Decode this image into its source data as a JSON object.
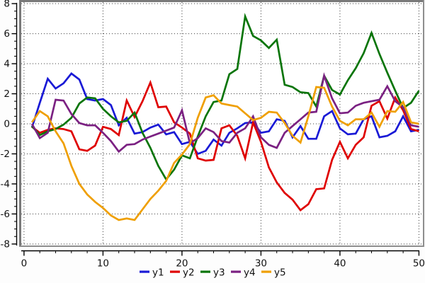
{
  "chart_data": {
    "type": "line",
    "title": "",
    "xlabel": "",
    "ylabel": "",
    "xlim": [
      -0.35,
      50.5
    ],
    "ylim": [
      -8.1,
      8.1
    ],
    "x_ticks": [
      0,
      10,
      20,
      30,
      40,
      50
    ],
    "x_tick_labels": [
      "0",
      "10",
      "20",
      "30",
      "40",
      "50"
    ],
    "x_minor_step": 2,
    "y_ticks": [
      -8,
      -6,
      -4,
      -2,
      0,
      2,
      4,
      6,
      8
    ],
    "y_tick_labels": [
      "-8",
      "-6",
      "-4",
      "-2",
      "0",
      "2",
      "4",
      "6",
      "8"
    ],
    "y_minor_step": 0.5,
    "grid": "dotted",
    "legend": {
      "position": "bottom-center"
    },
    "x": [
      1,
      2,
      3,
      4,
      5,
      6,
      7,
      8,
      9,
      10,
      11,
      12,
      13,
      14,
      15,
      16,
      17,
      18,
      19,
      20,
      21,
      22,
      23,
      24,
      25,
      26,
      27,
      28,
      29,
      30,
      31,
      32,
      33,
      34,
      35,
      36,
      37,
      38,
      39,
      40,
      41,
      42,
      43,
      44,
      45,
      46,
      47,
      48,
      49,
      50
    ],
    "series": [
      {
        "name": "y1",
        "color": "#1a1ad6",
        "values": [
          -0.25,
          1.4,
          3.0,
          2.35,
          2.7,
          3.35,
          2.95,
          1.65,
          1.55,
          1.65,
          1.25,
          -0.1,
          0.4,
          -0.65,
          -0.55,
          -0.25,
          -0.05,
          -0.7,
          -0.55,
          -1.35,
          -1.2,
          -2.0,
          -1.8,
          -1.05,
          -1.45,
          -0.6,
          -0.3,
          0.05,
          0.1,
          -0.6,
          -0.5,
          0.3,
          0.2,
          -0.9,
          -0.15,
          -1.0,
          -1.0,
          0.5,
          0.85,
          -0.3,
          -0.7,
          -0.65,
          0.3,
          0.5,
          -0.9,
          -0.8,
          -0.5,
          0.5,
          -0.5,
          -0.4
        ]
      },
      {
        "name": "y2",
        "color": "#df0000",
        "values": [
          -0.2,
          -0.6,
          -0.4,
          -0.3,
          -0.35,
          -0.5,
          -1.7,
          -1.8,
          -1.45,
          -0.2,
          -0.35,
          -0.75,
          1.55,
          0.45,
          1.5,
          2.75,
          1.1,
          1.15,
          0.1,
          -0.25,
          -0.65,
          -2.3,
          -2.45,
          -2.4,
          -0.3,
          -0.1,
          -0.8,
          -2.3,
          0.1,
          -1.2,
          -2.9,
          -3.9,
          -4.6,
          -5.05,
          -5.75,
          -5.35,
          -4.35,
          -4.3,
          -2.4,
          -1.2,
          -2.3,
          -1.4,
          -0.9,
          1.2,
          1.5,
          0.35,
          1.75,
          0.9,
          -0.35,
          -0.5
        ]
      },
      {
        "name": "y3",
        "color": "#097509",
        "values": [
          -0.15,
          -0.75,
          -0.5,
          -0.35,
          -0.05,
          0.4,
          1.35,
          1.75,
          1.7,
          1.0,
          0.5,
          0.1,
          0.2,
          0.75,
          -0.6,
          -1.6,
          -2.8,
          -3.7,
          -3.05,
          -2.1,
          -2.3,
          -0.85,
          0.5,
          1.45,
          1.55,
          3.3,
          3.65,
          7.15,
          5.85,
          5.55,
          5.05,
          5.6,
          2.6,
          2.45,
          2.1,
          2.05,
          1.15,
          3.2,
          2.25,
          1.95,
          2.9,
          3.7,
          4.7,
          6.05,
          4.65,
          3.4,
          2.2,
          1.05,
          1.4,
          2.2
        ]
      },
      {
        "name": "y4",
        "color": "#7b2182",
        "values": [
          0.0,
          -0.95,
          -0.6,
          1.6,
          1.55,
          0.65,
          0.05,
          -0.1,
          -0.1,
          -0.6,
          -1.15,
          -1.85,
          -1.4,
          -1.35,
          -1.05,
          -0.85,
          -0.65,
          -0.45,
          -0.25,
          0.9,
          -1.3,
          -0.95,
          -0.3,
          -0.55,
          -1.15,
          -1.25,
          -0.6,
          -0.3,
          0.5,
          -0.9,
          -1.4,
          -1.6,
          -0.6,
          -0.15,
          0.3,
          0.75,
          0.8,
          3.2,
          1.7,
          0.7,
          0.75,
          1.2,
          1.4,
          1.5,
          1.6,
          2.5,
          1.5,
          1.1,
          -0.1,
          -0.2
        ]
      },
      {
        "name": "y5",
        "color": "#ef9f00",
        "values": [
          0.1,
          0.85,
          0.5,
          -0.5,
          -1.3,
          -2.8,
          -4.0,
          -4.7,
          -5.2,
          -5.6,
          -6.1,
          -6.4,
          -6.3,
          -6.4,
          -5.7,
          -5.0,
          -4.45,
          -3.8,
          -2.6,
          -2.05,
          -1.35,
          0.4,
          1.75,
          1.9,
          1.35,
          1.25,
          1.15,
          0.7,
          0.25,
          0.4,
          0.8,
          0.75,
          0.05,
          -0.8,
          -1.25,
          0.5,
          2.45,
          2.4,
          1.15,
          0.2,
          -0.1,
          0.3,
          0.3,
          0.75,
          -0.2,
          0.85,
          0.8,
          1.45,
          0.1,
          0.0
        ]
      }
    ],
    "style": {
      "grid_color": "#3c3c3c",
      "frame_color_topleft": "#7a7a7a",
      "frame_color_bottomright": "#8e8e8e",
      "axis_color": "#000000",
      "label_color": "#111111",
      "plot_bg": "#ffffff"
    }
  }
}
